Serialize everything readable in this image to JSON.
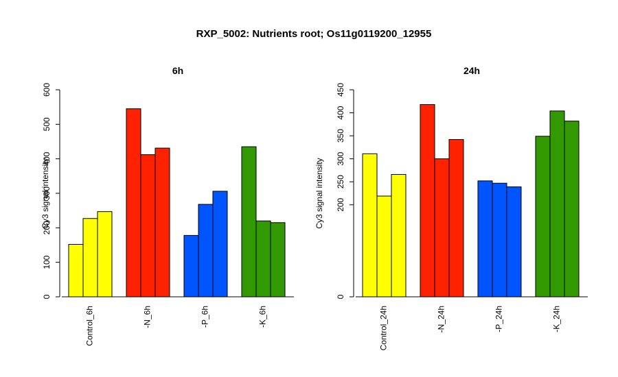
{
  "title": "RXP_5002: Nutrients root; Os11g0119200_12955",
  "chart_data": [
    {
      "type": "bar",
      "title": "6h",
      "ylabel": "Cy3 signal intensity",
      "ylim": [
        0,
        600
      ],
      "yticks": [
        0,
        100,
        200,
        300,
        400,
        500,
        600
      ],
      "grid": false,
      "groups": [
        {
          "label": "Control_6h",
          "color": "#ffff00",
          "values": [
            152,
            227,
            247
          ]
        },
        {
          "label": "-N_6h",
          "color": "#ff2200",
          "values": [
            545,
            412,
            431
          ]
        },
        {
          "label": "-P_6h",
          "color": "#0055ff",
          "values": [
            178,
            268,
            306
          ]
        },
        {
          "label": "-K_6h",
          "color": "#339900",
          "values": [
            435,
            220,
            215
          ]
        }
      ]
    },
    {
      "type": "bar",
      "title": "24h",
      "ylabel": "Cy3 signal intensity",
      "ylim": [
        0,
        450
      ],
      "yticks": [
        0,
        200,
        250,
        300,
        350,
        400,
        450
      ],
      "grid": false,
      "groups": [
        {
          "label": "Control_24h",
          "color": "#ffff00",
          "values": [
            311,
            219,
            266
          ]
        },
        {
          "label": "-N_24h",
          "color": "#ff2200",
          "values": [
            418,
            300,
            342
          ]
        },
        {
          "label": "-P_24h",
          "color": "#0055ff",
          "values": [
            252,
            247,
            239
          ]
        },
        {
          "label": "-K_24h",
          "color": "#339900",
          "values": [
            349,
            404,
            382
          ]
        }
      ]
    }
  ]
}
